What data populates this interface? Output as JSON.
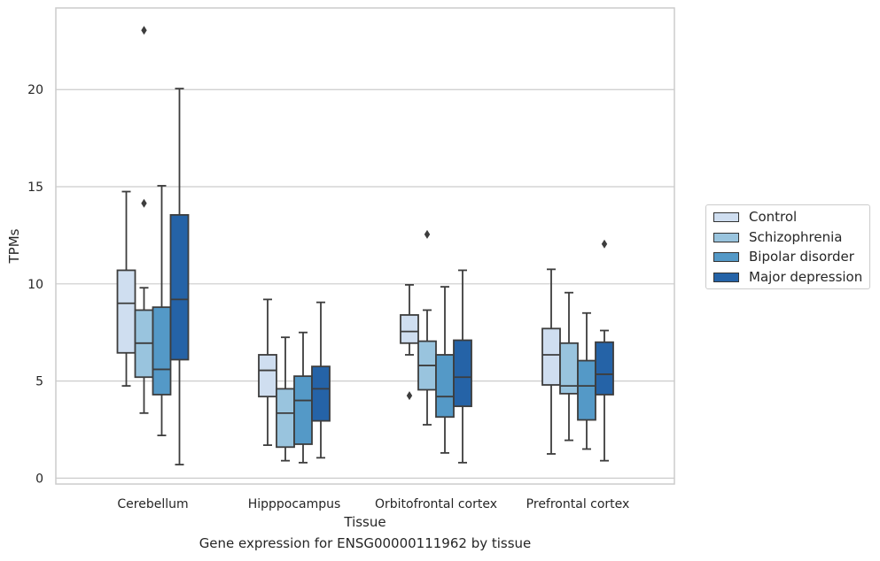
{
  "chart_data": {
    "type": "box",
    "xlabel": "Tissue",
    "ylabel": "TPMs",
    "caption": "Gene expression for ENSG00000111962 by tissue",
    "categories": [
      "Cerebellum",
      "Hipppocampus",
      "Orbitofrontal cortex",
      "Prefrontal cortex"
    ],
    "ylim": [
      -0.3,
      24.2
    ],
    "yticks": [
      0,
      5,
      10,
      15,
      20
    ],
    "grid": "horizontal",
    "legend_position": "center-right outside",
    "series": [
      {
        "name": "Control",
        "color": "#cfdef0",
        "boxes": [
          {
            "whislo": 4.75,
            "q1": 6.45,
            "med": 9.0,
            "q3": 10.7,
            "whishi": 14.75,
            "fliers": []
          },
          {
            "whislo": 1.7,
            "q1": 4.2,
            "med": 5.55,
            "q3": 6.35,
            "whishi": 9.2,
            "fliers": []
          },
          {
            "whislo": 6.35,
            "q1": 6.95,
            "med": 7.55,
            "q3": 8.4,
            "whishi": 9.95,
            "fliers": [
              4.25
            ]
          },
          {
            "whislo": 1.25,
            "q1": 4.8,
            "med": 6.35,
            "q3": 7.7,
            "whishi": 10.75,
            "fliers": []
          }
        ]
      },
      {
        "name": "Schizophrenia",
        "color": "#99c4de",
        "boxes": [
          {
            "whislo": 3.35,
            "q1": 5.2,
            "med": 6.95,
            "q3": 8.65,
            "whishi": 9.8,
            "fliers": [
              23.05,
              14.15
            ]
          },
          {
            "whislo": 0.9,
            "q1": 1.6,
            "med": 3.35,
            "q3": 4.6,
            "whishi": 7.25,
            "fliers": []
          },
          {
            "whislo": 2.75,
            "q1": 4.55,
            "med": 5.8,
            "q3": 7.05,
            "whishi": 8.65,
            "fliers": [
              12.55
            ]
          },
          {
            "whislo": 1.95,
            "q1": 4.35,
            "med": 4.75,
            "q3": 6.95,
            "whishi": 9.55,
            "fliers": []
          }
        ]
      },
      {
        "name": "Bipolar disorder",
        "color": "#5499c7",
        "boxes": [
          {
            "whislo": 2.2,
            "q1": 4.3,
            "med": 5.6,
            "q3": 8.8,
            "whishi": 15.05,
            "fliers": []
          },
          {
            "whislo": 0.8,
            "q1": 1.75,
            "med": 4.0,
            "q3": 5.25,
            "whishi": 7.5,
            "fliers": []
          },
          {
            "whislo": 1.3,
            "q1": 3.15,
            "med": 4.2,
            "q3": 6.35,
            "whishi": 9.85,
            "fliers": []
          },
          {
            "whislo": 1.5,
            "q1": 3.0,
            "med": 4.75,
            "q3": 6.05,
            "whishi": 8.5,
            "fliers": []
          }
        ]
      },
      {
        "name": "Major depression",
        "color": "#2563a7",
        "boxes": [
          {
            "whislo": 0.7,
            "q1": 6.1,
            "med": 9.2,
            "q3": 13.55,
            "whishi": 20.05,
            "fliers": []
          },
          {
            "whislo": 1.05,
            "q1": 2.95,
            "med": 4.6,
            "q3": 5.75,
            "whishi": 9.05,
            "fliers": []
          },
          {
            "whislo": 0.8,
            "q1": 3.7,
            "med": 5.2,
            "q3": 7.1,
            "whishi": 10.7,
            "fliers": []
          },
          {
            "whislo": 0.9,
            "q1": 4.3,
            "med": 5.35,
            "q3": 7.0,
            "whishi": 7.6,
            "fliers": [
              12.05
            ]
          }
        ]
      }
    ]
  }
}
